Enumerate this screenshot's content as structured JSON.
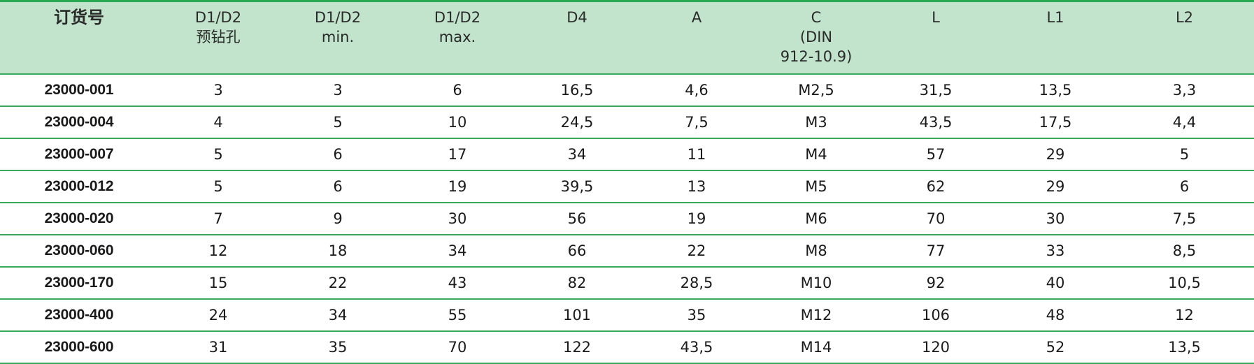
{
  "table": {
    "headers": [
      [
        "订货号"
      ],
      [
        "D1/D2",
        "预钻孔"
      ],
      [
        "D1/D2",
        "min."
      ],
      [
        "D1/D2",
        "max."
      ],
      [
        "D4"
      ],
      [
        "A"
      ],
      [
        "C",
        "(DIN",
        "912-10.9)"
      ],
      [
        "L"
      ],
      [
        "L1"
      ],
      [
        "L2"
      ]
    ],
    "rows": [
      [
        "23000-001",
        "3",
        "3",
        "6",
        "16,5",
        "4,6",
        "M2,5",
        "31,5",
        "13,5",
        "3,3"
      ],
      [
        "23000-004",
        "4",
        "5",
        "10",
        "24,5",
        "7,5",
        "M3",
        "43,5",
        "17,5",
        "4,4"
      ],
      [
        "23000-007",
        "5",
        "6",
        "17",
        "34",
        "11",
        "M4",
        "57",
        "29",
        "5"
      ],
      [
        "23000-012",
        "5",
        "6",
        "19",
        "39,5",
        "13",
        "M5",
        "62",
        "29",
        "6"
      ],
      [
        "23000-020",
        "7",
        "9",
        "30",
        "56",
        "19",
        "M6",
        "70",
        "30",
        "7,5"
      ],
      [
        "23000-060",
        "12",
        "18",
        "34",
        "66",
        "22",
        "M8",
        "77",
        "33",
        "8,5"
      ],
      [
        "23000-170",
        "15",
        "22",
        "43",
        "82",
        "28,5",
        "M10",
        "92",
        "40",
        "10,5"
      ],
      [
        "23000-400",
        "24",
        "34",
        "55",
        "101",
        "35",
        "M12",
        "106",
        "48",
        "12"
      ],
      [
        "23000-600",
        "31",
        "35",
        "70",
        "122",
        "43,5",
        "M14",
        "120",
        "52",
        "13,5"
      ]
    ],
    "colors": {
      "header_bg": "#c2e4cd",
      "rule": "#3aa85a",
      "top_rule": "#2aa852"
    }
  }
}
